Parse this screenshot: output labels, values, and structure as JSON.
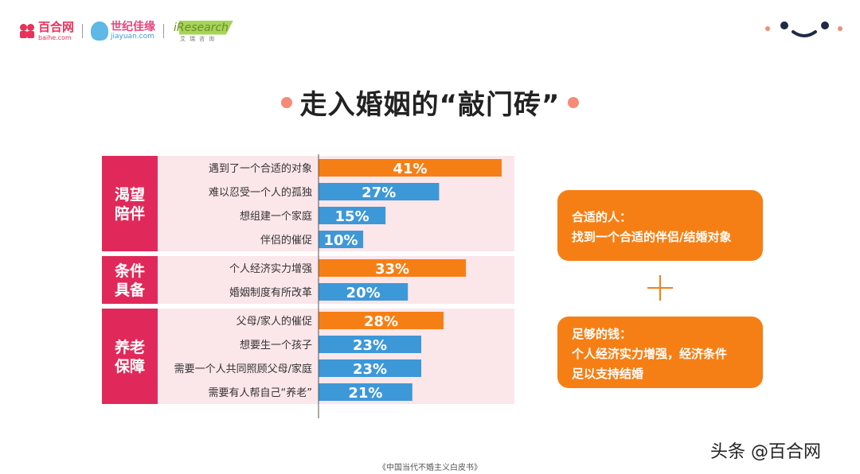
{
  "header": {
    "logos": [
      {
        "name": "百合网",
        "sub": "baihe.com"
      },
      {
        "name": "世纪佳缘",
        "sub": "jiayuan.com"
      },
      {
        "name": "iResearch",
        "sub": "艾瑞咨询"
      }
    ]
  },
  "title": "走入婚姻的“敲门砖”",
  "colors": {
    "orange": "#f67f15",
    "blue": "#3d98d8",
    "group_label": "#e0295a",
    "group_bg": "#fbe6ea",
    "accent_dot": "#f58b77"
  },
  "chart_data": {
    "type": "bar",
    "orientation": "horizontal",
    "unit": "%",
    "xlim": [
      0,
      45
    ],
    "groups": [
      {
        "label": "渴望\n陪伴",
        "categories": [
          "遇到了一个合适的对象",
          "难以忍受一个人的孤独",
          "想组建一个家庭",
          "伴侣的催促"
        ],
        "values": [
          41,
          27,
          15,
          10
        ],
        "highlight": [
          true,
          false,
          false,
          false
        ]
      },
      {
        "label": "条件\n具备",
        "categories": [
          "个人经济实力增强",
          "婚姻制度有所改革"
        ],
        "values": [
          33,
          20
        ],
        "highlight": [
          true,
          false
        ]
      },
      {
        "label": "养老\n保障",
        "categories": [
          "父母/家人的催促",
          "想要生一个孩子",
          "需要一个人共同照顾父母/家庭",
          "需要有人帮自己“养老”"
        ],
        "values": [
          28,
          23,
          23,
          21
        ],
        "highlight": [
          true,
          false,
          false,
          false
        ]
      }
    ]
  },
  "cards": [
    {
      "title": "合适的人：",
      "lines": [
        "找到一个合适的伴侣/结婚对象"
      ]
    },
    {
      "title": "足够的钱：",
      "lines": [
        "个人经济实力增强，经济条件",
        "足以支持结婚"
      ]
    }
  ],
  "source": "《中国当代不婚主义白皮书》",
  "watermark": "头条 @百合网"
}
